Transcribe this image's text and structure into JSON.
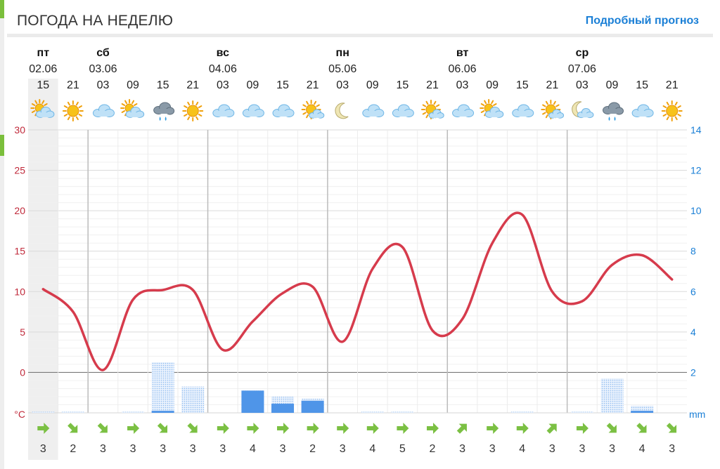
{
  "header": {
    "title": "ПОГОДА НА НЕДЕЛЮ",
    "link": "Подробный прогноз"
  },
  "chart_data": {
    "type": "line",
    "days": [
      {
        "name": "пт",
        "date": "02.06",
        "slot": 0
      },
      {
        "name": "сб",
        "date": "03.06",
        "slot": 2
      },
      {
        "name": "вс",
        "date": "04.06",
        "slot": 6
      },
      {
        "name": "пн",
        "date": "05.06",
        "slot": 10
      },
      {
        "name": "вт",
        "date": "06.06",
        "slot": 14
      },
      {
        "name": "ср",
        "date": "07.06",
        "slot": 18
      }
    ],
    "hours": [
      "15",
      "21",
      "03",
      "09",
      "15",
      "21",
      "03",
      "09",
      "15",
      "21",
      "03",
      "09",
      "15",
      "21",
      "03",
      "09",
      "15",
      "21",
      "03",
      "09",
      "15",
      "21"
    ],
    "icons": [
      "partly-cloudy-icon",
      "sun-icon",
      "cloud-icon",
      "partly-cloudy-icon",
      "rain-cloud-icon",
      "sun-icon",
      "cloud-icon",
      "cloud-icon",
      "cloud-icon",
      "sun-cloud-icon",
      "moon-icon",
      "cloud-icon",
      "cloud-icon",
      "sun-cloud-icon",
      "cloud-icon",
      "partly-cloudy-icon",
      "cloud-icon",
      "sun-cloud-icon",
      "moon-cloud-icon",
      "rain-cloud-icon",
      "cloud-icon",
      "sun-icon"
    ],
    "temperature": {
      "unit": "°C",
      "ylim": [
        -5,
        30
      ],
      "ticks": [
        0,
        5,
        10,
        15,
        20,
        25,
        30
      ],
      "values": [
        10.3,
        7.5,
        0.3,
        9.0,
        10.2,
        10.2,
        2.8,
        6.3,
        9.8,
        10.6,
        3.8,
        12.8,
        15.5,
        5.2,
        6.6,
        16.0,
        19.5,
        10.0,
        8.8,
        13.3,
        14.5,
        11.5
      ]
    },
    "precipitation": {
      "unit": "mm",
      "ylim": [
        0,
        14
      ],
      "ticks": [
        2,
        4,
        6,
        8,
        10,
        12,
        14
      ],
      "values": [
        0.05,
        0.05,
        0,
        0.05,
        2.5,
        1.3,
        0,
        1.1,
        0.8,
        0.7,
        0,
        0.05,
        0.05,
        0,
        0,
        0,
        0.05,
        0,
        0.05,
        1.7,
        0.35,
        0
      ],
      "firm": [
        0,
        0,
        0,
        0,
        0.1,
        0,
        0,
        1.1,
        0.45,
        0.6,
        0,
        0,
        0,
        0,
        0,
        0,
        0,
        0,
        0,
        0,
        0.1,
        0
      ]
    },
    "wind": {
      "speeds": [
        "3",
        "2",
        "3",
        "3",
        "3",
        "3",
        "3",
        "4",
        "3",
        "2",
        "3",
        "4",
        "5",
        "2",
        "3",
        "3",
        "4",
        "3",
        "3",
        "3",
        "4",
        "3"
      ],
      "dirs": [
        90,
        135,
        135,
        90,
        135,
        135,
        90,
        90,
        90,
        90,
        90,
        90,
        90,
        90,
        45,
        90,
        90,
        45,
        90,
        135,
        135,
        135
      ]
    }
  },
  "colors": {
    "temp": "#d63b4c",
    "below": "#22a5dc",
    "precip": "#4f95e8",
    "precip_light": "#8fbcf0",
    "wind": "#7bc043",
    "grid": "#e6e6e6",
    "day_line": "#bcbcbc",
    "highlight": "#efefef"
  }
}
